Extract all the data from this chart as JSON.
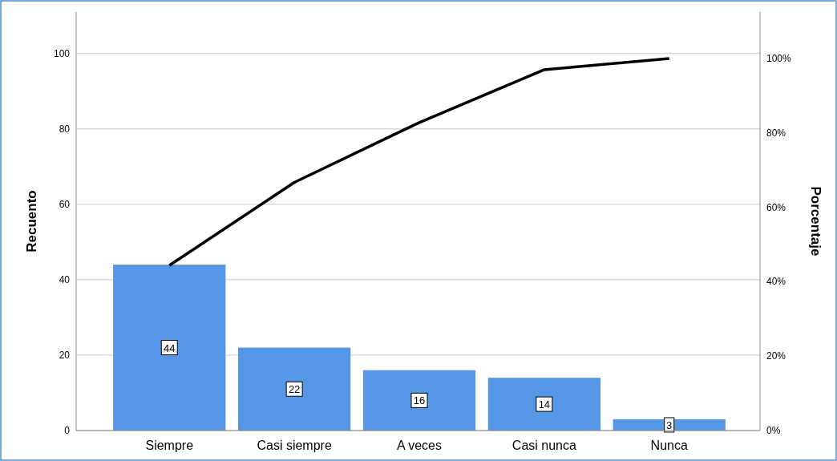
{
  "chart_data": {
    "type": "bar",
    "categories": [
      "Siempre",
      "Casi siempre",
      "A veces",
      "Casi nunca",
      "Nunca"
    ],
    "series": [
      {
        "color": "#5596e6",
        "values": [
          44,
          22,
          16,
          14,
          3
        ],
        "value_labels": [
          "44",
          "22",
          "16",
          "14",
          "3"
        ]
      },
      {
        "type": "line",
        "axis": "y2",
        "color": "#000000",
        "values": [
          44.4,
          66.7,
          82.8,
          97.0,
          100
        ]
      }
    ],
    "ylabel": "Recuento",
    "y2label": "Porcentaje",
    "ylim": [
      0,
      111
    ],
    "yticks": [
      0,
      20,
      40,
      60,
      80,
      100
    ],
    "y2lim": [
      0,
      112.5
    ],
    "y2ticks": [
      {
        "value": 0,
        "label": "0%"
      },
      {
        "value": 20,
        "label": "20%"
      },
      {
        "value": 40,
        "label": "40%"
      },
      {
        "value": 60,
        "label": "60%"
      },
      {
        "value": 80,
        "label": "80%"
      },
      {
        "value": 100,
        "label": "100%"
      }
    ],
    "grid": "y",
    "marker": "none",
    "line_style": "solid"
  }
}
